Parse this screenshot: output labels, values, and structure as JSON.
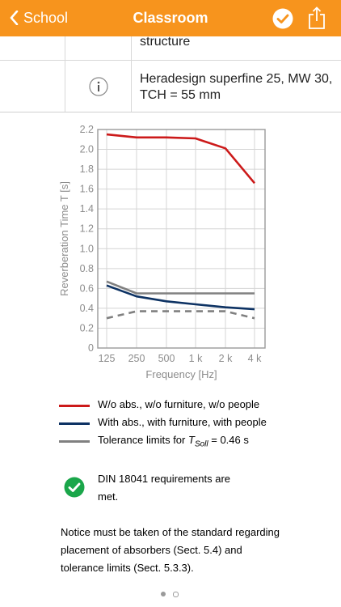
{
  "nav": {
    "back_label": "School",
    "title": "Classroom",
    "colors": {
      "bar": "#f7941d",
      "text": "#ffffff"
    }
  },
  "materials": {
    "row1_text": "structure",
    "row2_text_line1": "Heradesign superfine 25, MW 30,",
    "row2_text_line2": "TCH = 55 mm",
    "info_icon": "info-icon"
  },
  "chart_data": {
    "type": "line",
    "x": [
      "125",
      "250",
      "500",
      "1 k",
      "2 k",
      "4 k"
    ],
    "xlabel": "Frequency [Hz]",
    "ylabel": "Reverberation Time  T [s]",
    "ylim": [
      0,
      2.2
    ],
    "yticks": [
      "0",
      "0.2",
      "0.4",
      "0.6",
      "0.8",
      "1.0",
      "1.2",
      "1.4",
      "1.6",
      "1.8",
      "2.0",
      "2.2"
    ],
    "grid": true,
    "series": [
      {
        "name": "W/o abs., w/o furniture, w/o people",
        "color": "#cc1a1a",
        "style": "solid",
        "values": [
          2.15,
          2.12,
          2.12,
          2.11,
          2.01,
          1.66
        ]
      },
      {
        "name": "With abs., with furniture, with people",
        "color": "#0d3263",
        "style": "solid",
        "values": [
          0.63,
          0.52,
          0.47,
          0.44,
          0.41,
          0.39
        ]
      },
      {
        "name": "Tolerance limits for T_Soll = 0.46 s",
        "color": "#808080",
        "style": "solid",
        "values": [
          0.67,
          0.55,
          0.55,
          0.55,
          0.55,
          0.55
        ]
      },
      {
        "name": "",
        "color": "#808080",
        "style": "dashed",
        "values": [
          0.3,
          0.37,
          0.37,
          0.37,
          0.37,
          0.3
        ]
      }
    ]
  },
  "legend": {
    "items": [
      {
        "label": "W/o abs., w/o furniture, w/o people",
        "color": "#cc1a1a"
      },
      {
        "label": "With abs., with furniture, with people",
        "color": "#0d3263"
      },
      {
        "label_prefix": "Tolerance limits for ",
        "label_var": "T",
        "label_sub": "Soll",
        "label_suffix": " = 0.46 s",
        "color": "#808080"
      }
    ]
  },
  "requirements": {
    "text_line1": "DIN 18041 requirements are",
    "text_line2": "met.",
    "status_color": "#1aa64a",
    "icon": "checkmark-circle-icon"
  },
  "notice": {
    "line1": "Notice must be taken of the standard regarding",
    "line2": "placement of absorbers (Sect. 5.4) and",
    "line3": "tolerance limits (Sect. 5.3.3)."
  },
  "pager": {
    "page": 1,
    "pages": 2
  }
}
